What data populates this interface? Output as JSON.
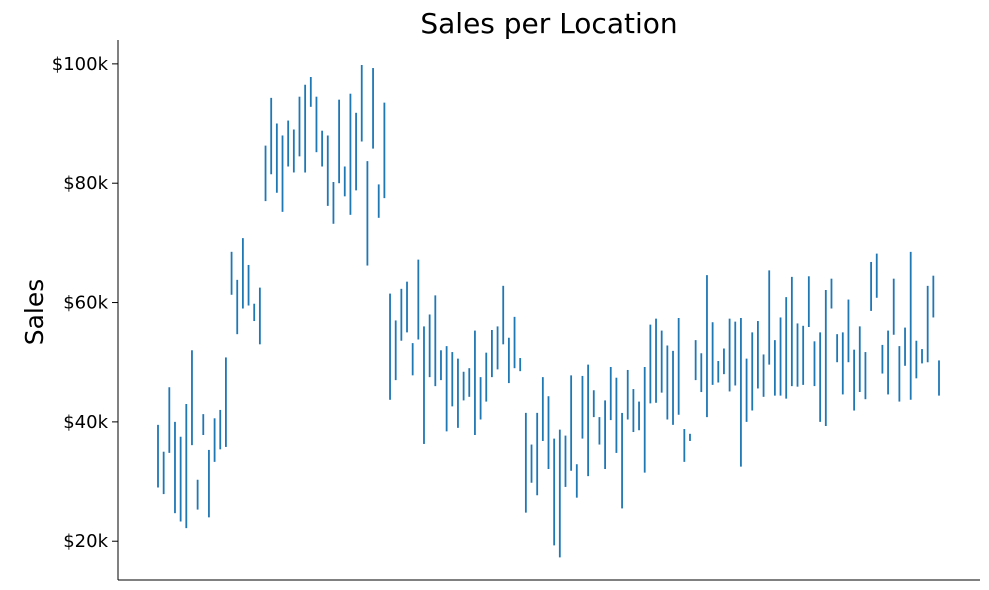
{
  "chart_data": {
    "type": "range",
    "title": "Sales per Location",
    "ylabel": "Sales",
    "xlabel": "",
    "ylim": [
      13500,
      104000
    ],
    "yticks": [
      {
        "value": 20000,
        "label": "$20k"
      },
      {
        "value": 40000,
        "label": "$40k"
      },
      {
        "value": 60000,
        "label": "$60k"
      },
      {
        "value": 80000,
        "label": "$80k"
      },
      {
        "value": 100000,
        "label": "$100k"
      }
    ],
    "grid": false,
    "series_color": "#1f77b4",
    "ranges": [
      [
        29000,
        39500
      ],
      [
        27900,
        35000
      ],
      [
        34800,
        45800
      ],
      [
        24700,
        40000
      ],
      [
        23300,
        37500
      ],
      [
        22200,
        43000
      ],
      [
        36100,
        52000
      ],
      [
        25300,
        30300
      ],
      [
        37800,
        41300
      ],
      [
        24000,
        35300
      ],
      [
        33300,
        40600
      ],
      [
        35400,
        42000
      ],
      [
        35800,
        50800
      ],
      [
        61300,
        68500
      ],
      [
        54700,
        63800
      ],
      [
        59000,
        70800
      ],
      [
        59500,
        66300
      ],
      [
        56900,
        59800
      ],
      [
        53000,
        62500
      ],
      [
        77000,
        86300
      ],
      [
        81500,
        94300
      ],
      [
        78400,
        90000
      ],
      [
        75200,
        88000
      ],
      [
        82800,
        90500
      ],
      [
        81800,
        89000
      ],
      [
        84500,
        94500
      ],
      [
        81800,
        96500
      ],
      [
        92800,
        97800
      ],
      [
        85200,
        94500
      ],
      [
        82800,
        88800
      ],
      [
        76200,
        88000
      ],
      [
        73200,
        80200
      ],
      [
        80000,
        94000
      ],
      [
        77800,
        82800
      ],
      [
        74700,
        95000
      ],
      [
        78800,
        91800
      ],
      [
        87000,
        99800
      ],
      [
        66200,
        83700
      ],
      [
        85800,
        99300
      ],
      [
        74200,
        79800
      ],
      [
        77500,
        93500
      ],
      [
        43700,
        61500
      ],
      [
        47000,
        57000
      ],
      [
        53600,
        62300
      ],
      [
        55000,
        63500
      ],
      [
        47800,
        53200
      ],
      [
        53800,
        67200
      ],
      [
        36300,
        56000
      ],
      [
        47500,
        58000
      ],
      [
        46000,
        61200
      ],
      [
        47000,
        52000
      ],
      [
        38400,
        52700
      ],
      [
        42600,
        51700
      ],
      [
        39000,
        50600
      ],
      [
        43600,
        48400
      ],
      [
        44200,
        49000
      ],
      [
        37800,
        55300
      ],
      [
        40400,
        47500
      ],
      [
        43400,
        51600
      ],
      [
        47500,
        55400
      ],
      [
        48800,
        56000
      ],
      [
        53000,
        62800
      ],
      [
        46500,
        54100
      ],
      [
        49000,
        57600
      ],
      [
        48500,
        50700
      ],
      [
        24800,
        41500
      ],
      [
        29800,
        36200
      ],
      [
        27700,
        41500
      ],
      [
        36800,
        47500
      ],
      [
        32100,
        44300
      ],
      [
        19300,
        37200
      ],
      [
        17300,
        38700
      ],
      [
        29100,
        37700
      ],
      [
        31800,
        47800
      ],
      [
        27300,
        32900
      ],
      [
        37200,
        47700
      ],
      [
        30900,
        49600
      ],
      [
        40800,
        45300
      ],
      [
        36200,
        40800
      ],
      [
        32100,
        43600
      ],
      [
        40300,
        49200
      ],
      [
        34800,
        47400
      ],
      [
        25500,
        41500
      ],
      [
        40400,
        48700
      ],
      [
        38300,
        45500
      ],
      [
        38600,
        43400
      ],
      [
        31500,
        49200
      ],
      [
        43100,
        56300
      ],
      [
        43200,
        57300
      ],
      [
        44900,
        55300
      ],
      [
        40400,
        52800
      ],
      [
        39500,
        51900
      ],
      [
        41200,
        57400
      ],
      [
        33300,
        38800
      ],
      [
        36800,
        38000
      ],
      [
        47000,
        53700
      ],
      [
        45000,
        51500
      ],
      [
        40800,
        64600
      ],
      [
        46200,
        56700
      ],
      [
        46600,
        50200
      ],
      [
        48000,
        52300
      ],
      [
        45100,
        57300
      ],
      [
        46100,
        56800
      ],
      [
        32500,
        57400
      ],
      [
        40000,
        50600
      ],
      [
        41900,
        55000
      ],
      [
        45600,
        56900
      ],
      [
        44200,
        51300
      ],
      [
        49600,
        65400
      ],
      [
        44400,
        53700
      ],
      [
        44400,
        57500
      ],
      [
        43900,
        60900
      ],
      [
        46000,
        64300
      ],
      [
        45900,
        56500
      ],
      [
        46200,
        56100
      ],
      [
        55900,
        64400
      ],
      [
        46000,
        53500
      ],
      [
        40000,
        55000
      ],
      [
        39300,
        62100
      ],
      [
        59000,
        64000
      ],
      [
        50000,
        54700
      ],
      [
        44600,
        55000
      ],
      [
        50000,
        60500
      ],
      [
        41900,
        52100
      ],
      [
        45000,
        56000
      ],
      [
        43800,
        51700
      ],
      [
        58600,
        66800
      ],
      [
        60800,
        68200
      ],
      [
        48100,
        52900
      ],
      [
        44600,
        55300
      ],
      [
        54600,
        64000
      ],
      [
        43400,
        52700
      ],
      [
        49400,
        55800
      ],
      [
        43700,
        68500
      ],
      [
        47300,
        53600
      ],
      [
        49800,
        52200
      ],
      [
        50000,
        62800
      ],
      [
        57500,
        64500
      ],
      [
        44400,
        50300
      ]
    ]
  }
}
